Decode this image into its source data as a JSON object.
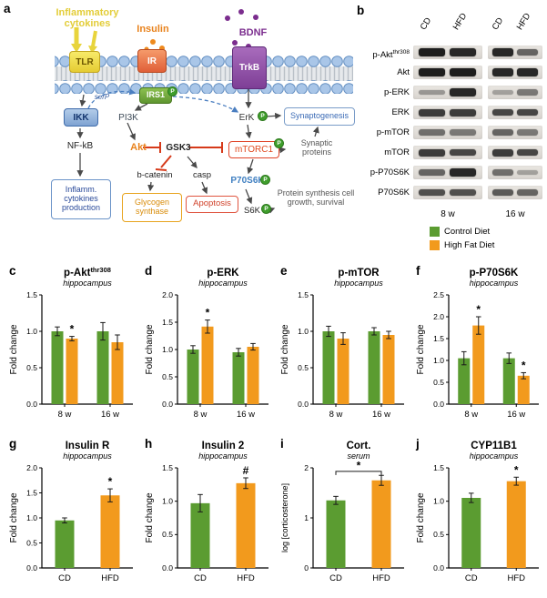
{
  "colors": {
    "series": {
      "CD": "#5b9c31",
      "HFD": "#f29a1d"
    }
  },
  "panel_a": {
    "letter": "a",
    "labels": {
      "inflammatory_cytokines": "Inflammatory cytokines",
      "insulin": "Insulin",
      "bdnf": "BDNF",
      "tlr": "TLR",
      "ir": "IR",
      "trkb": "TrkB",
      "irs1": "IRS1",
      "ikk": "IKK",
      "serp": "serP",
      "pi3k": "PI3K",
      "erk": "ErK",
      "nfkb": "NF-kB",
      "akt": "Akt",
      "gsk3": "GSK3",
      "mtorc1": "mTORC1",
      "b_catenin": "b-catenin",
      "casp": "casp",
      "p70s6k": "P70S6K",
      "s6k": "S6K",
      "synaptogenesis": "Synaptogenesis",
      "inflamm_production": "Inflamm. cytokines production",
      "glycogen_synthase": "Glycogen synthase",
      "apoptosis": "Apoptosis",
      "synaptic_proteins": "Synaptic proteins",
      "protein_synthesis": "Protein synthesis cell growth, survival",
      "phospho": "P"
    }
  },
  "panel_b": {
    "letter": "b",
    "lane_headers": [
      "CD",
      "HFD",
      "CD",
      "HFD"
    ],
    "group_labels": [
      "8 w",
      "16 w"
    ],
    "rows": [
      {
        "label": "p-Akt",
        "sup": "thr308",
        "bands": [
          0.95,
          0.9,
          0.9,
          0.6
        ]
      },
      {
        "label": "Akt",
        "bands": [
          0.95,
          0.95,
          0.9,
          0.9
        ]
      },
      {
        "label": "p-ERK",
        "bands": [
          0.35,
          0.9,
          0.3,
          0.5
        ]
      },
      {
        "label": "ERK",
        "bands": [
          0.8,
          0.8,
          0.75,
          0.75
        ]
      },
      {
        "label": "p-mTOR",
        "bands": [
          0.55,
          0.5,
          0.6,
          0.5
        ]
      },
      {
        "label": "mTOR",
        "bands": [
          0.8,
          0.75,
          0.8,
          0.75
        ]
      },
      {
        "label": "p-P70S6K",
        "bands": [
          0.6,
          0.9,
          0.55,
          0.3
        ]
      },
      {
        "label": "P70S6K",
        "bands": [
          0.7,
          0.7,
          0.65,
          0.6
        ]
      }
    ]
  },
  "legend": {
    "items": [
      {
        "label": "Control Diet",
        "color": "#5b9c31"
      },
      {
        "label": "High Fat Diet",
        "color": "#f29a1d"
      }
    ]
  },
  "chart_data": [
    {
      "id": "c",
      "letter": "c",
      "type": "bar",
      "title": "p-Akt",
      "title_sup": "thr308",
      "subtitle": "hippocampus",
      "ylabel": "Fold change",
      "ylim": [
        0,
        1.5
      ],
      "yticks": [
        0,
        0.5,
        1,
        1.5
      ],
      "ydecimals": 1,
      "groups": [
        {
          "label": "8 w",
          "bars": [
            {
              "series": "CD",
              "value": 1.0,
              "err": 0.06
            },
            {
              "series": "HFD",
              "value": 0.9,
              "err": 0.03,
              "mark": "*"
            }
          ]
        },
        {
          "label": "16 w",
          "bars": [
            {
              "series": "CD",
              "value": 1.0,
              "err": 0.12
            },
            {
              "series": "HFD",
              "value": 0.85,
              "err": 0.1
            }
          ]
        }
      ]
    },
    {
      "id": "d",
      "letter": "d",
      "type": "bar",
      "title": "p-ERK",
      "subtitle": "hippocampus",
      "ylabel": "Fold change",
      "ylim": [
        0,
        2
      ],
      "yticks": [
        0,
        0.5,
        1,
        1.5,
        2
      ],
      "ydecimals": 1,
      "groups": [
        {
          "label": "8 w",
          "bars": [
            {
              "series": "CD",
              "value": 1.0,
              "err": 0.07
            },
            {
              "series": "HFD",
              "value": 1.42,
              "err": 0.12,
              "mark": "*"
            }
          ]
        },
        {
          "label": "16 w",
          "bars": [
            {
              "series": "CD",
              "value": 0.95,
              "err": 0.07
            },
            {
              "series": "HFD",
              "value": 1.05,
              "err": 0.06
            }
          ]
        }
      ]
    },
    {
      "id": "e",
      "letter": "e",
      "type": "bar",
      "title": "p-mTOR",
      "subtitle": "hippocampus",
      "ylabel": "Fold change",
      "ylim": [
        0,
        1.5
      ],
      "yticks": [
        0,
        0.5,
        1,
        1.5
      ],
      "ydecimals": 1,
      "groups": [
        {
          "label": "8 w",
          "bars": [
            {
              "series": "CD",
              "value": 1.0,
              "err": 0.07
            },
            {
              "series": "HFD",
              "value": 0.9,
              "err": 0.08
            }
          ]
        },
        {
          "label": "16 w",
          "bars": [
            {
              "series": "CD",
              "value": 1.0,
              "err": 0.05
            },
            {
              "series": "HFD",
              "value": 0.95,
              "err": 0.05
            }
          ]
        }
      ]
    },
    {
      "id": "f",
      "letter": "f",
      "type": "bar",
      "title": "p-P70S6K",
      "subtitle": "hippocampus",
      "ylabel": "Fold change",
      "ylim": [
        0,
        2.5
      ],
      "yticks": [
        0,
        0.5,
        1,
        1.5,
        2,
        2.5
      ],
      "ydecimals": 1,
      "groups": [
        {
          "label": "8 w",
          "bars": [
            {
              "series": "CD",
              "value": 1.05,
              "err": 0.15
            },
            {
              "series": "HFD",
              "value": 1.8,
              "err": 0.2,
              "mark": "*"
            }
          ]
        },
        {
          "label": "16 w",
          "bars": [
            {
              "series": "CD",
              "value": 1.05,
              "err": 0.12
            },
            {
              "series": "HFD",
              "value": 0.65,
              "err": 0.07,
              "mark": "*"
            }
          ]
        }
      ]
    },
    {
      "id": "g",
      "letter": "g",
      "type": "bar",
      "title": "Insulin R",
      "subtitle": "hippocampus",
      "ylabel": "Fold change",
      "ylim": [
        0,
        2
      ],
      "yticks": [
        0,
        0.5,
        1,
        1.5,
        2
      ],
      "ydecimals": 1,
      "groups": [
        {
          "label": "CD",
          "bars": [
            {
              "series": "CD",
              "value": 0.95,
              "err": 0.05
            }
          ]
        },
        {
          "label": "HFD",
          "bars": [
            {
              "series": "HFD",
              "value": 1.45,
              "err": 0.13,
              "mark": "*"
            }
          ]
        }
      ]
    },
    {
      "id": "h",
      "letter": "h",
      "type": "bar",
      "title": "Insulin 2",
      "subtitle": "hippocampus",
      "ylabel": "Fold change",
      "ylim": [
        0,
        1.5
      ],
      "yticks": [
        0,
        0.5,
        1,
        1.5
      ],
      "ydecimals": 1,
      "groups": [
        {
          "label": "CD",
          "bars": [
            {
              "series": "CD",
              "value": 0.97,
              "err": 0.13
            }
          ]
        },
        {
          "label": "HFD",
          "bars": [
            {
              "series": "HFD",
              "value": 1.27,
              "err": 0.08,
              "mark": "#"
            }
          ]
        }
      ]
    },
    {
      "id": "i",
      "letter": "i",
      "type": "bar",
      "title": "Cort.",
      "subtitle": "serum",
      "ylabel": "log [corticosterone]",
      "ylim": [
        0,
        2
      ],
      "yticks": [
        0,
        1,
        2
      ],
      "ydecimals": 0,
      "groups": [
        {
          "label": "CD",
          "bars": [
            {
              "series": "CD",
              "value": 1.35,
              "err": 0.08
            }
          ]
        },
        {
          "label": "HFD",
          "bars": [
            {
              "series": "HFD",
              "value": 1.75,
              "err": 0.1
            }
          ]
        }
      ],
      "bracket": {
        "from": 0,
        "to": 1,
        "y": 1.93,
        "mark": "*"
      }
    },
    {
      "id": "j",
      "letter": "j",
      "type": "bar",
      "title": "CYP11B1",
      "subtitle": "hippocampus",
      "ylabel": "Fold change",
      "ylim": [
        0,
        1.5
      ],
      "yticks": [
        0,
        0.5,
        1,
        1.5
      ],
      "ydecimals": 1,
      "groups": [
        {
          "label": "CD",
          "bars": [
            {
              "series": "CD",
              "value": 1.05,
              "err": 0.07
            }
          ]
        },
        {
          "label": "HFD",
          "bars": [
            {
              "series": "HFD",
              "value": 1.3,
              "err": 0.06,
              "mark": "*"
            }
          ]
        }
      ]
    }
  ]
}
